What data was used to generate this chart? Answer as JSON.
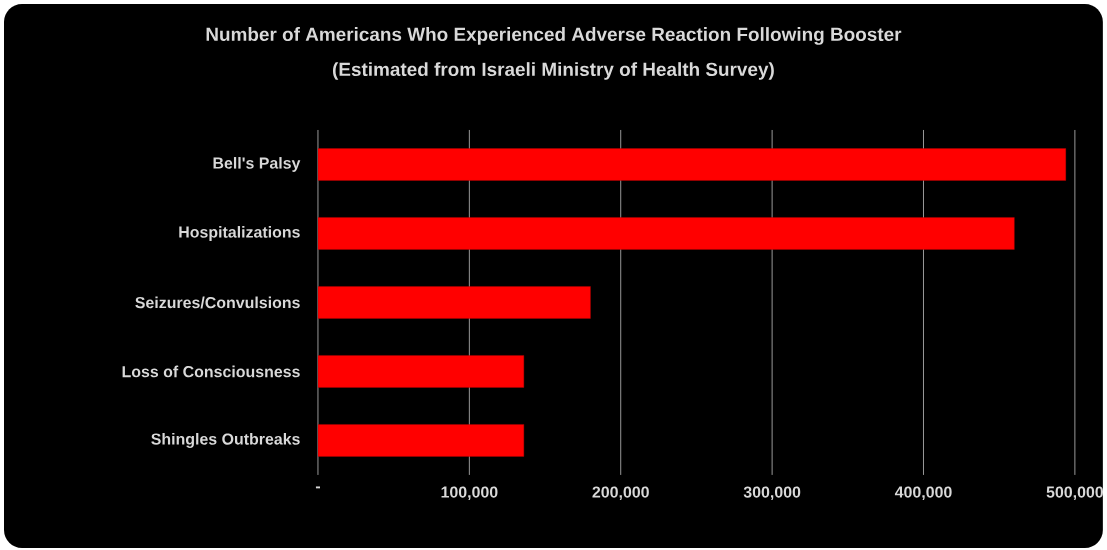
{
  "chart_data": {
    "type": "bar",
    "orientation": "horizontal",
    "title": "Number of Americans Who Experienced Adverse Reaction Following Booster",
    "subtitle": "(Estimated from Israeli Ministry of Health Survey)",
    "categories": [
      "Bell's Palsy",
      "Hospitalizations",
      "Seizures/Convulsions",
      "Loss of Consciousness",
      "Shingles Outbreaks"
    ],
    "values": [
      494000,
      460000,
      180000,
      136000,
      136000
    ],
    "color": "#ff0000",
    "xlim": [
      0,
      500000
    ],
    "xticks": [
      {
        "value": 0,
        "label": "-"
      },
      {
        "value": 100000,
        "label": "100,000"
      },
      {
        "value": 200000,
        "label": "200,000"
      },
      {
        "value": 300000,
        "label": "300,000"
      },
      {
        "value": 400000,
        "label": "400,000"
      },
      {
        "value": 500000,
        "label": "500,000"
      }
    ],
    "grid": "x"
  }
}
